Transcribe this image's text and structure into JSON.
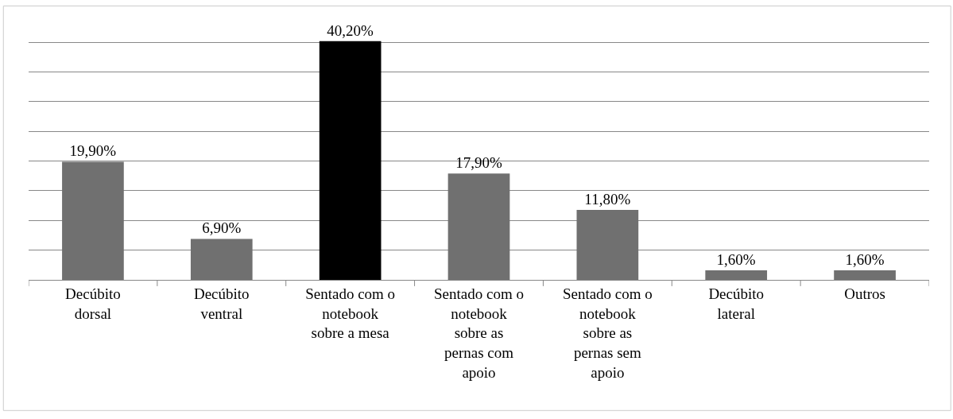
{
  "chart_data": {
    "type": "bar",
    "categories": [
      "Decúbito dorsal",
      "Decúbito ventral",
      "Sentado com o notebook sobre a mesa",
      "Sentado com o notebook sobre as pernas com apoio",
      "Sentado com o notebook sobre as pernas sem apoio",
      "Decúbito lateral",
      "Outros"
    ],
    "values": [
      19.9,
      6.9,
      40.2,
      17.9,
      11.8,
      1.6,
      1.6
    ],
    "colors": [
      "#707070",
      "#707070",
      "#000000",
      "#707070",
      "#707070",
      "#707070",
      "#707070"
    ],
    "value_labels": [
      "19,90%",
      "6,90%",
      "40,20%",
      "17,90%",
      "11,80%",
      "1,60%",
      "1,60%"
    ],
    "grid": "y",
    "legend": false,
    "tick_labels": "x"
  }
}
